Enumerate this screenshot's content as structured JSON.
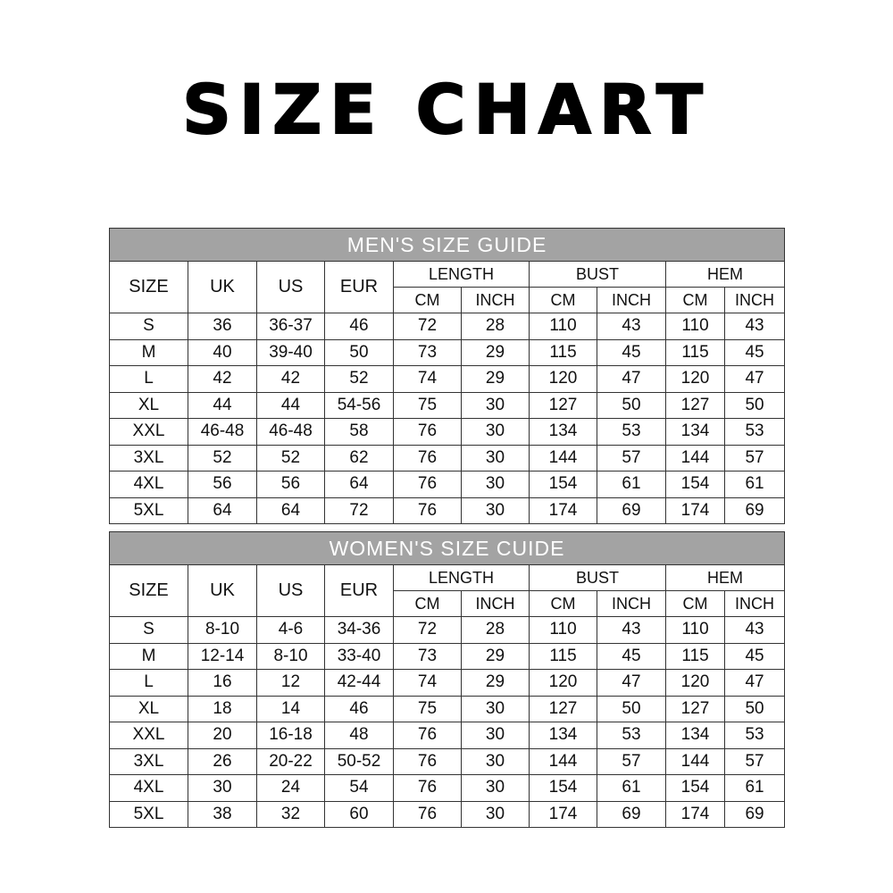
{
  "title": "SIZE CHART",
  "header": {
    "size": "SIZE",
    "uk": "UK",
    "us": "US",
    "eur": "EUR",
    "length": "LENGTH",
    "bust": "BUST",
    "hem": "HEM",
    "cm": "CM",
    "inch": "INCH"
  },
  "tables": [
    {
      "caption": "MEN'S SIZE GUIDE",
      "rows": [
        [
          "S",
          "36",
          "36-37",
          "46",
          "72",
          "28",
          "110",
          "43",
          "110",
          "43"
        ],
        [
          "M",
          "40",
          "39-40",
          "50",
          "73",
          "29",
          "115",
          "45",
          "115",
          "45"
        ],
        [
          "L",
          "42",
          "42",
          "52",
          "74",
          "29",
          "120",
          "47",
          "120",
          "47"
        ],
        [
          "XL",
          "44",
          "44",
          "54-56",
          "75",
          "30",
          "127",
          "50",
          "127",
          "50"
        ],
        [
          "XXL",
          "46-48",
          "46-48",
          "58",
          "76",
          "30",
          "134",
          "53",
          "134",
          "53"
        ],
        [
          "3XL",
          "52",
          "52",
          "62",
          "76",
          "30",
          "144",
          "57",
          "144",
          "57"
        ],
        [
          "4XL",
          "56",
          "56",
          "64",
          "76",
          "30",
          "154",
          "61",
          "154",
          "61"
        ],
        [
          "5XL",
          "64",
          "64",
          "72",
          "76",
          "30",
          "174",
          "69",
          "174",
          "69"
        ]
      ]
    },
    {
      "caption": "WOMEN'S SIZE CUIDE",
      "rows": [
        [
          "S",
          "8-10",
          "4-6",
          "34-36",
          "72",
          "28",
          "110",
          "43",
          "110",
          "43"
        ],
        [
          "M",
          "12-14",
          "8-10",
          "33-40",
          "73",
          "29",
          "115",
          "45",
          "115",
          "45"
        ],
        [
          "L",
          "16",
          "12",
          "42-44",
          "74",
          "29",
          "120",
          "47",
          "120",
          "47"
        ],
        [
          "XL",
          "18",
          "14",
          "46",
          "75",
          "30",
          "127",
          "50",
          "127",
          "50"
        ],
        [
          "XXL",
          "20",
          "16-18",
          "48",
          "76",
          "30",
          "134",
          "53",
          "134",
          "53"
        ],
        [
          "3XL",
          "26",
          "20-22",
          "50-52",
          "76",
          "30",
          "144",
          "57",
          "144",
          "57"
        ],
        [
          "4XL",
          "30",
          "24",
          "54",
          "76",
          "30",
          "154",
          "61",
          "154",
          "61"
        ],
        [
          "5XL",
          "38",
          "32",
          "60",
          "76",
          "30",
          "174",
          "69",
          "174",
          "69"
        ]
      ]
    }
  ]
}
